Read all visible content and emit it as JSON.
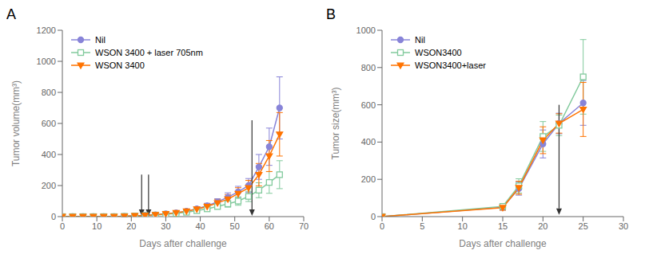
{
  "chart_data": [
    {
      "type": "line",
      "title": "A",
      "x_label": "Days after challenge",
      "y_label": "Tumor volume(mm³)",
      "xlim": [
        0,
        70
      ],
      "ylim": [
        0,
        1200
      ],
      "xticks": [
        0,
        10,
        20,
        30,
        40,
        50,
        60,
        70
      ],
      "yticks": [
        0,
        200,
        400,
        600,
        800,
        1000,
        1200
      ],
      "legend": "upper left",
      "series": [
        {
          "name": "Nil",
          "color": "#8884d8",
          "marker": "circle",
          "x": [
            0,
            3,
            6,
            9,
            12,
            15,
            18,
            21,
            24,
            27,
            30,
            33,
            36,
            39,
            42,
            45,
            48,
            51,
            54,
            57,
            60,
            63
          ],
          "values": [
            0,
            0,
            0,
            0,
            0,
            0,
            2,
            5,
            8,
            12,
            18,
            25,
            35,
            50,
            70,
            95,
            125,
            160,
            200,
            320,
            450,
            700
          ],
          "errors": [
            0,
            0,
            0,
            0,
            0,
            0,
            1,
            2,
            3,
            4,
            6,
            8,
            10,
            13,
            16,
            20,
            28,
            35,
            45,
            80,
            120,
            200
          ]
        },
        {
          "name": "WSON 3400 + laser 705nm",
          "color": "#82ca9d",
          "marker": "open_square",
          "x": [
            0,
            3,
            6,
            9,
            12,
            15,
            18,
            21,
            24,
            27,
            30,
            33,
            36,
            39,
            42,
            45,
            48,
            51,
            54,
            57,
            60,
            63
          ],
          "values": [
            0,
            0,
            0,
            0,
            0,
            0,
            2,
            4,
            7,
            10,
            15,
            20,
            28,
            38,
            50,
            65,
            82,
            100,
            130,
            170,
            220,
            270
          ],
          "errors": [
            0,
            0,
            0,
            0,
            0,
            0,
            1,
            2,
            3,
            4,
            5,
            7,
            9,
            11,
            14,
            17,
            21,
            27,
            33,
            48,
            70,
            90
          ]
        },
        {
          "name": "WSON 3400",
          "color": "#ff7300",
          "marker": "triangle_down",
          "x": [
            0,
            3,
            6,
            9,
            12,
            15,
            18,
            21,
            24,
            27,
            30,
            33,
            36,
            39,
            42,
            45,
            48,
            51,
            54,
            57,
            60,
            63
          ],
          "values": [
            0,
            0,
            0,
            0,
            0,
            0,
            2,
            5,
            8,
            12,
            18,
            25,
            35,
            48,
            65,
            88,
            112,
            148,
            185,
            270,
            390,
            530
          ],
          "errors": [
            0,
            0,
            0,
            0,
            0,
            0,
            1,
            2,
            3,
            4,
            6,
            8,
            10,
            14,
            18,
            23,
            30,
            38,
            48,
            72,
            100,
            140
          ]
        }
      ],
      "arrows": [
        {
          "x": 23,
          "y_start": 270,
          "y_end": 5
        },
        {
          "x": 25,
          "y_start": 270,
          "y_end": 5
        },
        {
          "x": 55,
          "y_start": 620,
          "y_end": 5
        }
      ]
    },
    {
      "type": "line",
      "title": "B",
      "x_label": "Days after challenge",
      "y_label": "Tumor size(mm³)",
      "xlim": [
        0,
        30
      ],
      "ylim": [
        0,
        1000
      ],
      "xticks": [
        0,
        5,
        10,
        15,
        20,
        25,
        30
      ],
      "yticks": [
        0,
        200,
        400,
        600,
        800,
        1000
      ],
      "legend": "upper left",
      "series": [
        {
          "name": "Nil",
          "color": "#8884d8",
          "marker": "circle",
          "x": [
            0,
            15,
            17,
            20,
            22,
            25
          ],
          "values": [
            0,
            50,
            150,
            390,
            500,
            610
          ],
          "errors": [
            0,
            15,
            35,
            75,
            55,
            120
          ]
        },
        {
          "name": "WSON3400",
          "color": "#82ca9d",
          "marker": "open_square",
          "x": [
            0,
            15,
            17,
            20,
            22,
            25
          ],
          "values": [
            0,
            55,
            165,
            430,
            490,
            750
          ],
          "errors": [
            0,
            15,
            38,
            80,
            55,
            200
          ]
        },
        {
          "name": "WSON3400+laser",
          "color": "#ff7300",
          "marker": "triangle_down",
          "x": [
            0,
            15,
            17,
            20,
            22,
            25
          ],
          "values": [
            0,
            48,
            155,
            410,
            500,
            575
          ],
          "errors": [
            0,
            14,
            35,
            72,
            52,
            145
          ]
        }
      ],
      "arrows": [
        {
          "x": 22,
          "y_start": 600,
          "y_end": 10
        }
      ]
    }
  ]
}
